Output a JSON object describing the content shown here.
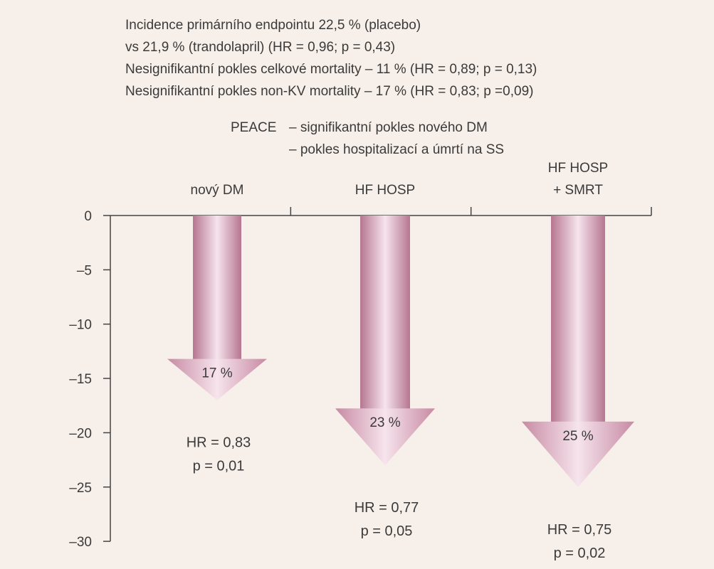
{
  "notes": [
    "Incidence primárního endpointu 22,5 % (placebo)",
    "vs 21,9 % (trandolapril) (HR = 0,96; p = 0,43)",
    "Nesignifikantní pokles celkové mortality  – 11 % (HR = 0,89; p = 0,13)",
    "Nesignifikantní pokles non-KV mortality  – 17 % (HR = 0,83; p =0,09)"
  ],
  "peace": {
    "label": "PEACE",
    "lines": [
      "– signifikantní pokles nového DM",
      "– pokles hospitalizací a úmrtí na SS"
    ]
  },
  "colors": {
    "arrow_light": "#f3dde6",
    "arrow_mid": "#d7a0b5",
    "arrow_dark": "#b06e8a",
    "axis": "#444444"
  },
  "chart_data": {
    "type": "bar",
    "style": "downward-arrows",
    "categories": [
      [
        "nový DM"
      ],
      [
        "HF HOSP"
      ],
      [
        "HF HOSP",
        "+ SMRT"
      ]
    ],
    "values": [
      -17,
      -23,
      -25
    ],
    "value_labels": [
      "17 %",
      "23 %",
      "25 %"
    ],
    "annotations": [
      [
        "HR = 0,83",
        "p = 0,01"
      ],
      [
        "HR = 0,77",
        "p = 0,05"
      ],
      [
        "HR = 0,75",
        "p = 0,02"
      ]
    ],
    "yticks": [
      0,
      -5,
      -10,
      -15,
      -20,
      -25,
      -30
    ],
    "ytick_labels": [
      "0",
      "–5",
      "–10",
      "–15",
      "–20",
      "–25",
      "–30"
    ],
    "ylim": [
      -30,
      0
    ],
    "xlabel": "",
    "ylabel": "",
    "grid": false
  }
}
